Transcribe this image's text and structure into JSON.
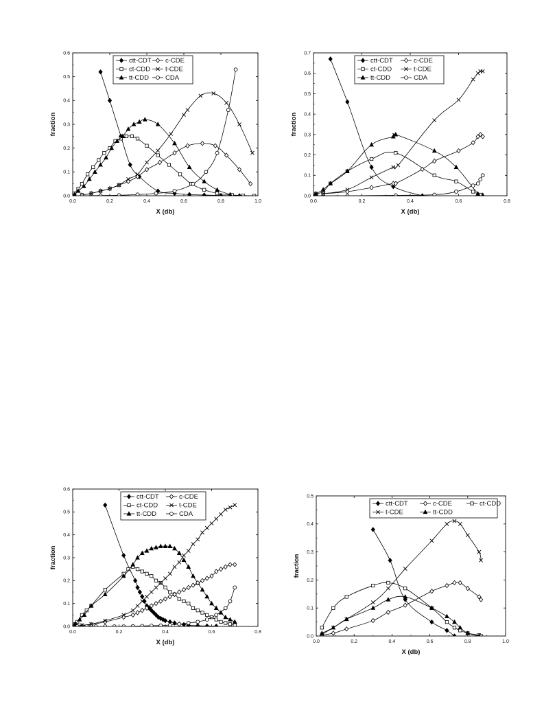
{
  "chart_data": [
    {
      "type": "line",
      "xlabel": "X (db)",
      "ylabel": "fraction",
      "xlim": [
        0,
        1.0
      ],
      "ylim": [
        0,
        0.6
      ],
      "xticks": [
        "0.0",
        "0.2",
        "0.4",
        "0.6",
        "0.8",
        "1.0"
      ],
      "yticks": [
        "0.0",
        "0.1",
        "0.2",
        "0.3",
        "0.4",
        "0.5",
        "0.6"
      ],
      "legend": {
        "position": "top",
        "columns": 2,
        "order": [
          "ctt-CDT",
          "c-CDE",
          "ct-CDD",
          "t-CDE",
          "tt-CDD",
          "CDA"
        ]
      },
      "series": [
        {
          "name": "ctt-CDT",
          "marker": "diamond-filled",
          "x": [
            0.15,
            0.2,
            0.26,
            0.31,
            0.36,
            0.46,
            0.55,
            0.63,
            0.71,
            0.8,
            0.9
          ],
          "values": [
            0.52,
            0.4,
            0.25,
            0.13,
            0.08,
            0.02,
            0.01,
            0.005,
            0.003,
            0.001,
            0.0
          ]
        },
        {
          "name": "ct-CDD",
          "marker": "square-open",
          "x": [
            0.01,
            0.03,
            0.05,
            0.08,
            0.11,
            0.14,
            0.17,
            0.2,
            0.23,
            0.26,
            0.29,
            0.32,
            0.35,
            0.4,
            0.46,
            0.52,
            0.58,
            0.64,
            0.71,
            0.78,
            0.86,
            0.92,
            0.98
          ],
          "values": [
            0.01,
            0.03,
            0.05,
            0.09,
            0.12,
            0.15,
            0.18,
            0.2,
            0.23,
            0.24,
            0.25,
            0.25,
            0.24,
            0.21,
            0.17,
            0.13,
            0.09,
            0.05,
            0.025,
            0.01,
            0.003,
            0.001,
            0.0
          ]
        },
        {
          "name": "tt-CDD",
          "marker": "triangle-filled",
          "x": [
            0.01,
            0.03,
            0.06,
            0.09,
            0.12,
            0.15,
            0.18,
            0.21,
            0.24,
            0.27,
            0.3,
            0.33,
            0.36,
            0.39,
            0.46,
            0.55,
            0.63,
            0.71,
            0.78,
            0.85
          ],
          "values": [
            0.005,
            0.02,
            0.04,
            0.07,
            0.1,
            0.13,
            0.16,
            0.2,
            0.23,
            0.25,
            0.28,
            0.3,
            0.31,
            0.32,
            0.3,
            0.22,
            0.12,
            0.06,
            0.025,
            0.005
          ]
        },
        {
          "name": "c-CDE",
          "marker": "diamond-open",
          "x": [
            0.05,
            0.1,
            0.15,
            0.2,
            0.25,
            0.3,
            0.35,
            0.4,
            0.47,
            0.55,
            0.62,
            0.7,
            0.77,
            0.83,
            0.9,
            0.96
          ],
          "values": [
            0.003,
            0.01,
            0.02,
            0.03,
            0.045,
            0.06,
            0.08,
            0.11,
            0.14,
            0.18,
            0.21,
            0.22,
            0.21,
            0.17,
            0.11,
            0.05
          ]
        },
        {
          "name": "t-CDE",
          "marker": "cross",
          "x": [
            0.05,
            0.1,
            0.15,
            0.2,
            0.25,
            0.3,
            0.35,
            0.4,
            0.46,
            0.53,
            0.6,
            0.62,
            0.69,
            0.76,
            0.83,
            0.9,
            0.97
          ],
          "values": [
            0.003,
            0.01,
            0.02,
            0.03,
            0.045,
            0.07,
            0.09,
            0.14,
            0.19,
            0.26,
            0.34,
            0.36,
            0.42,
            0.43,
            0.39,
            0.3,
            0.18
          ]
        },
        {
          "name": "CDA",
          "marker": "circle-open",
          "x": [
            0.05,
            0.15,
            0.25,
            0.35,
            0.45,
            0.55,
            0.65,
            0.72,
            0.78,
            0.84,
            0.88
          ],
          "values": [
            0.0,
            0.001,
            0.002,
            0.005,
            0.01,
            0.02,
            0.05,
            0.1,
            0.18,
            0.36,
            0.53
          ]
        }
      ]
    },
    {
      "type": "line",
      "xlabel": "X (db)",
      "ylabel": "fraction",
      "xlim": [
        0,
        0.8
      ],
      "ylim": [
        0,
        0.7
      ],
      "xticks": [
        "0.0",
        "0.2",
        "0.4",
        "0.6",
        "0.8"
      ],
      "yticks": [
        "0.0",
        "0.1",
        "0.2",
        "0.3",
        "0.4",
        "0.5",
        "0.6",
        "0.7"
      ],
      "legend": {
        "position": "top",
        "columns": 2,
        "order": [
          "ctt-CDT",
          "c-CDE",
          "ct-CDD",
          "t-CDE",
          "tt-CDD",
          "CDA"
        ]
      },
      "series": [
        {
          "name": "ctt-CDT",
          "marker": "diamond-filled",
          "x": [
            0.07,
            0.14,
            0.24,
            0.33,
            0.45
          ],
          "values": [
            0.67,
            0.46,
            0.14,
            0.045,
            0.0
          ]
        },
        {
          "name": "ct-CDD",
          "marker": "square-open",
          "x": [
            0.01,
            0.04,
            0.07,
            0.14,
            0.24,
            0.34,
            0.5,
            0.59,
            0.66,
            0.69
          ],
          "values": [
            0.01,
            0.02,
            0.06,
            0.12,
            0.18,
            0.21,
            0.1,
            0.07,
            0.02,
            0.005
          ]
        },
        {
          "name": "tt-CDD",
          "marker": "triangle-filled",
          "x": [
            0.01,
            0.04,
            0.07,
            0.14,
            0.24,
            0.33,
            0.34,
            0.5,
            0.59,
            0.68,
            0.7
          ],
          "values": [
            0.01,
            0.03,
            0.06,
            0.12,
            0.25,
            0.29,
            0.3,
            0.22,
            0.14,
            0.01,
            0.003
          ]
        },
        {
          "name": "c-CDE",
          "marker": "diamond-open",
          "x": [
            0.04,
            0.14,
            0.24,
            0.33,
            0.34,
            0.45,
            0.5,
            0.6,
            0.66,
            0.68,
            0.69,
            0.7
          ],
          "values": [
            0.01,
            0.02,
            0.04,
            0.06,
            0.06,
            0.13,
            0.17,
            0.22,
            0.26,
            0.29,
            0.3,
            0.29
          ]
        },
        {
          "name": "t-CDE",
          "marker": "cross",
          "x": [
            0.04,
            0.14,
            0.24,
            0.33,
            0.35,
            0.5,
            0.6,
            0.66,
            0.68,
            0.69,
            0.7
          ],
          "values": [
            0.01,
            0.03,
            0.09,
            0.14,
            0.15,
            0.37,
            0.47,
            0.57,
            0.6,
            0.61,
            0.61
          ]
        },
        {
          "name": "CDA",
          "marker": "circle-open",
          "x": [
            0.14,
            0.34,
            0.5,
            0.59,
            0.66,
            0.68,
            0.69,
            0.7
          ],
          "values": [
            0.0,
            0.002,
            0.005,
            0.02,
            0.05,
            0.06,
            0.08,
            0.1
          ]
        }
      ]
    },
    {
      "type": "line",
      "xlabel": "X (db)",
      "ylabel": "fraction",
      "xlim": [
        0,
        0.8
      ],
      "ylim": [
        0,
        0.6
      ],
      "xticks": [
        "0.0",
        "0.2",
        "0.4",
        "0.6",
        "0.8"
      ],
      "yticks": [
        "0.0",
        "0.1",
        "0.2",
        "0.3",
        "0.4",
        "0.5",
        "0.6"
      ],
      "legend": {
        "position": "top-right",
        "columns": 2,
        "order": [
          "ctt-CDT",
          "c-CDE",
          "ct-CDD",
          "t-CDE",
          "tt-CDD",
          "CDA"
        ]
      },
      "series": [
        {
          "name": "ctt-CDT",
          "marker": "diamond-filled",
          "x": [
            0.14,
            0.22,
            0.27,
            0.28,
            0.29,
            0.3,
            0.31,
            0.32,
            0.33,
            0.34,
            0.35,
            0.36,
            0.37,
            0.38,
            0.39,
            0.4,
            0.42,
            0.44,
            0.46,
            0.48,
            0.5,
            0.54,
            0.58,
            0.62
          ],
          "values": [
            0.53,
            0.31,
            0.2,
            0.17,
            0.15,
            0.13,
            0.11,
            0.09,
            0.08,
            0.07,
            0.06,
            0.05,
            0.04,
            0.035,
            0.03,
            0.025,
            0.02,
            0.015,
            0.01,
            0.008,
            0.005,
            0.003,
            0.002,
            0.001
          ]
        },
        {
          "name": "ct-CDD",
          "marker": "square-open",
          "x": [
            0.01,
            0.02,
            0.04,
            0.06,
            0.08,
            0.14,
            0.22,
            0.24,
            0.26,
            0.28,
            0.3,
            0.32,
            0.34,
            0.36,
            0.38,
            0.4,
            0.42,
            0.44,
            0.46,
            0.48,
            0.5,
            0.52,
            0.54,
            0.56,
            0.58,
            0.6,
            0.62,
            0.64,
            0.66,
            0.68,
            0.7
          ],
          "values": [
            0.01,
            0.02,
            0.05,
            0.07,
            0.09,
            0.16,
            0.23,
            0.25,
            0.26,
            0.25,
            0.24,
            0.23,
            0.22,
            0.2,
            0.19,
            0.17,
            0.15,
            0.14,
            0.12,
            0.11,
            0.1,
            0.08,
            0.07,
            0.06,
            0.05,
            0.04,
            0.03,
            0.02,
            0.015,
            0.01,
            0.005
          ]
        },
        {
          "name": "tt-CDD",
          "marker": "triangle-filled",
          "x": [
            0.01,
            0.03,
            0.05,
            0.08,
            0.14,
            0.22,
            0.26,
            0.28,
            0.3,
            0.32,
            0.34,
            0.36,
            0.38,
            0.4,
            0.42,
            0.44,
            0.46,
            0.48,
            0.5,
            0.52,
            0.54,
            0.56,
            0.58,
            0.6,
            0.62,
            0.64,
            0.66,
            0.68,
            0.7
          ],
          "values": [
            0.01,
            0.03,
            0.05,
            0.09,
            0.14,
            0.22,
            0.27,
            0.3,
            0.32,
            0.33,
            0.34,
            0.345,
            0.35,
            0.35,
            0.35,
            0.34,
            0.32,
            0.29,
            0.26,
            0.22,
            0.19,
            0.16,
            0.13,
            0.1,
            0.08,
            0.06,
            0.04,
            0.03,
            0.02
          ]
        },
        {
          "name": "c-CDE",
          "marker": "diamond-open",
          "x": [
            0.02,
            0.04,
            0.08,
            0.14,
            0.22,
            0.26,
            0.28,
            0.3,
            0.32,
            0.34,
            0.36,
            0.38,
            0.4,
            0.42,
            0.44,
            0.46,
            0.48,
            0.5,
            0.52,
            0.54,
            0.56,
            0.58,
            0.6,
            0.62,
            0.64,
            0.66,
            0.68,
            0.7
          ],
          "values": [
            0.0,
            0.003,
            0.008,
            0.02,
            0.04,
            0.05,
            0.06,
            0.07,
            0.08,
            0.09,
            0.1,
            0.11,
            0.12,
            0.13,
            0.14,
            0.15,
            0.16,
            0.17,
            0.18,
            0.19,
            0.2,
            0.21,
            0.22,
            0.24,
            0.25,
            0.26,
            0.27,
            0.27
          ]
        },
        {
          "name": "t-CDE",
          "marker": "cross",
          "x": [
            0.02,
            0.04,
            0.08,
            0.14,
            0.22,
            0.26,
            0.28,
            0.3,
            0.32,
            0.34,
            0.36,
            0.38,
            0.4,
            0.42,
            0.44,
            0.46,
            0.48,
            0.5,
            0.52,
            0.54,
            0.56,
            0.58,
            0.6,
            0.62,
            0.64,
            0.66,
            0.68,
            0.7
          ],
          "values": [
            0.0,
            0.005,
            0.01,
            0.025,
            0.05,
            0.07,
            0.09,
            0.11,
            0.13,
            0.15,
            0.17,
            0.19,
            0.21,
            0.23,
            0.26,
            0.28,
            0.31,
            0.33,
            0.36,
            0.38,
            0.41,
            0.43,
            0.45,
            0.47,
            0.49,
            0.51,
            0.52,
            0.53
          ]
        },
        {
          "name": "CDA",
          "marker": "circle-open",
          "x": [
            0.02,
            0.06,
            0.1,
            0.14,
            0.18,
            0.22,
            0.26,
            0.3,
            0.34,
            0.38,
            0.42,
            0.46,
            0.5,
            0.54,
            0.58,
            0.62,
            0.66,
            0.68,
            0.7
          ],
          "values": [
            0.0,
            0.0,
            0.0,
            0.0,
            0.0,
            0.0,
            0.001,
            0.002,
            0.003,
            0.004,
            0.006,
            0.01,
            0.015,
            0.02,
            0.03,
            0.05,
            0.08,
            0.11,
            0.17
          ]
        }
      ]
    },
    {
      "type": "line",
      "xlabel": "X (db)",
      "ylabel": "fraction",
      "xlim": [
        0,
        1.0
      ],
      "ylim": [
        0,
        0.5
      ],
      "xticks": [
        "0.0",
        "0.2",
        "0.4",
        "0.6",
        "0.8",
        "1.0"
      ],
      "yticks": [
        "0.0",
        "0.1",
        "0.2",
        "0.3",
        "0.4",
        "0.5"
      ],
      "legend": {
        "position": "top-right",
        "columns": 3,
        "order": [
          "ctt-CDT",
          "c-CDE",
          "ct-CDD",
          "t-CDE",
          "tt-CDD"
        ]
      },
      "series": [
        {
          "name": "ctt-CDT",
          "marker": "diamond-filled",
          "x": [
            0.3,
            0.39,
            0.47,
            0.61,
            0.69,
            0.73
          ],
          "values": [
            0.38,
            0.27,
            0.13,
            0.05,
            0.02,
            0.0
          ]
        },
        {
          "name": "c-CDE",
          "marker": "diamond-open",
          "x": [
            0.03,
            0.09,
            0.16,
            0.3,
            0.38,
            0.47,
            0.61,
            0.69,
            0.73,
            0.76,
            0.8,
            0.86,
            0.87
          ],
          "values": [
            0.003,
            0.01,
            0.025,
            0.055,
            0.085,
            0.11,
            0.16,
            0.18,
            0.19,
            0.19,
            0.17,
            0.14,
            0.13
          ]
        },
        {
          "name": "ct-CDD",
          "marker": "square-open",
          "x": [
            0.03,
            0.09,
            0.16,
            0.3,
            0.38,
            0.47,
            0.61,
            0.69,
            0.73,
            0.76,
            0.8,
            0.86,
            0.87
          ],
          "values": [
            0.03,
            0.1,
            0.14,
            0.18,
            0.19,
            0.17,
            0.1,
            0.05,
            0.03,
            0.02,
            0.01,
            0.003,
            0.0
          ]
        },
        {
          "name": "t-CDE",
          "marker": "cross",
          "x": [
            0.03,
            0.09,
            0.16,
            0.3,
            0.38,
            0.47,
            0.61,
            0.69,
            0.73,
            0.76,
            0.8,
            0.86,
            0.87
          ],
          "values": [
            0.005,
            0.03,
            0.06,
            0.12,
            0.17,
            0.24,
            0.34,
            0.4,
            0.41,
            0.4,
            0.36,
            0.3,
            0.27
          ]
        },
        {
          "name": "tt-CDD",
          "marker": "triangle-filled",
          "x": [
            0.03,
            0.09,
            0.16,
            0.3,
            0.38,
            0.47,
            0.61,
            0.69,
            0.73,
            0.76,
            0.8,
            0.86
          ],
          "values": [
            0.01,
            0.03,
            0.06,
            0.1,
            0.13,
            0.14,
            0.1,
            0.07,
            0.05,
            0.03,
            0.01,
            0.0
          ]
        }
      ]
    }
  ]
}
